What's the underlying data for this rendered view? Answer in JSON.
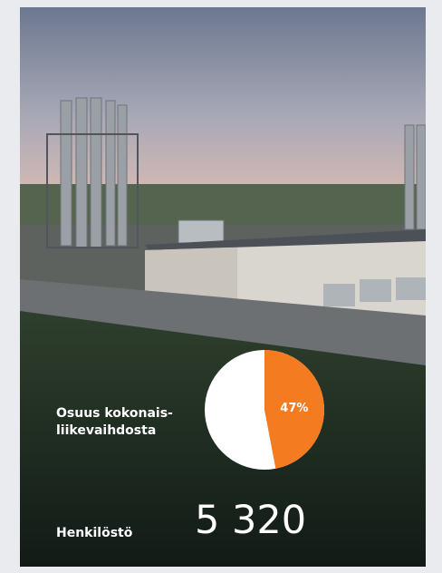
{
  "chart_data": {
    "type": "pie",
    "title": "Osuus kokonais-liikevaihdosta",
    "values": [
      47
    ],
    "value_labels": [
      "47%"
    ],
    "color": "#f47b20"
  },
  "staff": {
    "label": "Henkilöstö",
    "value": {
      "value": 5320,
      "label": "5 320"
    }
  }
}
